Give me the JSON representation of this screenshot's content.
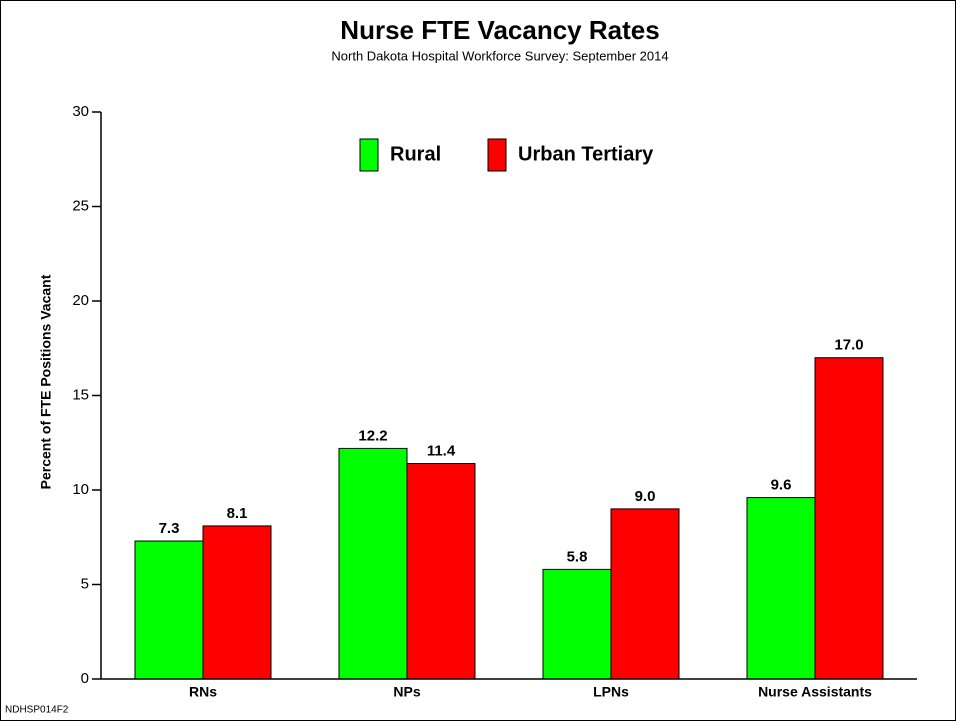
{
  "chart_data": {
    "type": "bar",
    "title": "Nurse FTE Vacancy Rates",
    "subtitle": "North Dakota Hospital Workforce Survey: September 2014",
    "y_label": "Percent of FTE Positions Vacant",
    "footnote": "NDHSP014F2",
    "categories": [
      "RNs",
      "NPs",
      "LPNs",
      "Nurse Assistants"
    ],
    "series": [
      {
        "name": "Rural",
        "color": "#00ff00",
        "values": [
          7.3,
          12.2,
          5.8,
          9.6
        ],
        "value_labels": [
          "7.3",
          "12.2",
          "5.8",
          "9.6"
        ]
      },
      {
        "name": "Urban Tertiary",
        "color": "#ff0000",
        "values": [
          8.1,
          11.4,
          9.0,
          17.0
        ],
        "value_labels": [
          "8.1",
          "11.4",
          "9.0",
          "17.0"
        ]
      }
    ],
    "ylim": [
      0,
      30
    ],
    "yticks": [
      0,
      5,
      10,
      15,
      20,
      25,
      30
    ],
    "legend": "top"
  }
}
